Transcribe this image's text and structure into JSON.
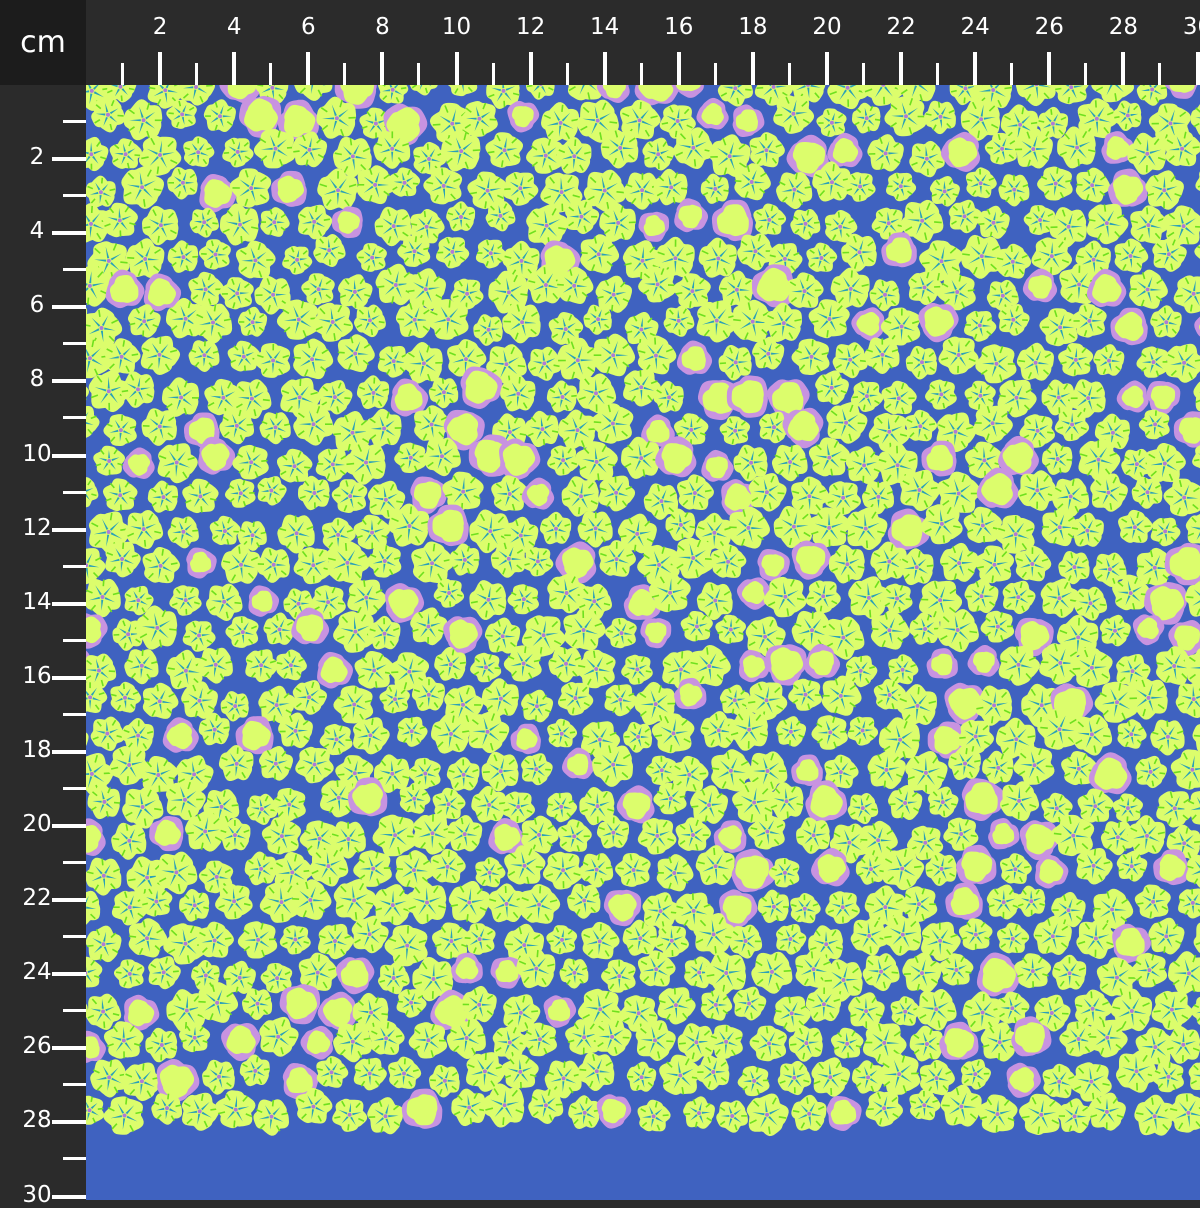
{
  "ruler": {
    "unit": "cm",
    "top_labels": [
      "2",
      "4",
      "6",
      "8",
      "10",
      "12",
      "14",
      "16",
      "18",
      "20",
      "22",
      "24",
      "26",
      "28",
      "30"
    ],
    "left_labels": [
      "2",
      "4",
      "6",
      "8",
      "10",
      "12",
      "14",
      "16",
      "18",
      "20",
      "22",
      "24",
      "26",
      "28",
      "30"
    ]
  },
  "fabric": {
    "description_colors": {
      "background": "#3f62c0",
      "petal": "#dcfd6c",
      "ring": "#c893e0",
      "star": "#2aa0b8",
      "vein": "#6ee01e",
      "center": "#b07ad8"
    }
  }
}
